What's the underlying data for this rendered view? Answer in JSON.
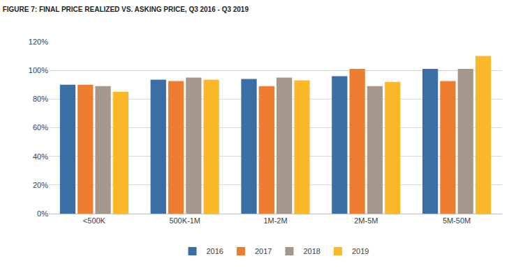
{
  "chart_data": {
    "type": "bar",
    "title": "FIGURE 7: FINAL PRICE REALIZED VS. ASKING PRICE, Q3 2016 - Q3 2019",
    "categories": [
      "<500K",
      "500K-1M",
      "1M-2M",
      "2M-5M",
      "5M-50M"
    ],
    "series": [
      {
        "name": "2016",
        "color": "#3a6ea5",
        "values": [
          90,
          93.5,
          94,
          96,
          101
        ]
      },
      {
        "name": "2017",
        "color": "#ed7d31",
        "values": [
          90,
          92.5,
          89,
          101,
          92.5
        ]
      },
      {
        "name": "2018",
        "color": "#a5978b",
        "values": [
          89,
          95,
          95,
          89,
          101
        ]
      },
      {
        "name": "2019",
        "color": "#fbb829",
        "values": [
          85,
          93.5,
          93,
          92,
          110
        ]
      }
    ],
    "ylim": [
      0,
      120
    ],
    "yticks": [
      {
        "value": 0,
        "label": "0%"
      },
      {
        "value": 20,
        "label": "20%"
      },
      {
        "value": 40,
        "label": "40%"
      },
      {
        "value": 60,
        "label": "60%"
      },
      {
        "value": 80,
        "label": "80%"
      },
      {
        "value": 100,
        "label": "100%"
      },
      {
        "value": 120,
        "label": "120%"
      }
    ],
    "grid": true,
    "legend": "bottom"
  }
}
